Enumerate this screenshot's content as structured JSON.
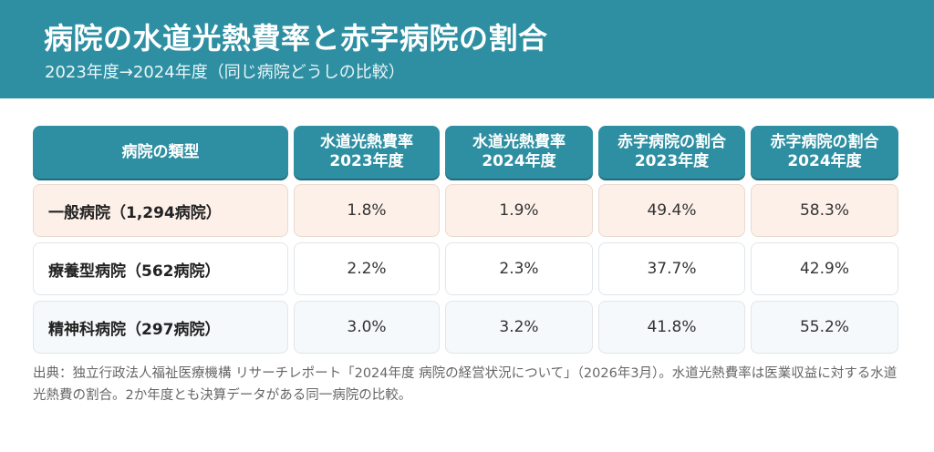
{
  "header": {
    "title": "病院の水道光熱費率と赤字病院の割合",
    "subtitle": "2023年度→2024年度（同じ病院どうしの比較）"
  },
  "table": {
    "columns": [
      "病院の類型",
      "水道光熱費率 2023年度",
      "水道光熱費率 2024年度",
      "赤字病院の割合 2023年度",
      "赤字病院の割合 2024年度"
    ],
    "rows": [
      [
        "一般病院（1,294病院）",
        "1.8%",
        "1.9%",
        "49.4%",
        "58.3%"
      ],
      [
        "療養型病院（562病院）",
        "2.2%",
        "2.3%",
        "37.7%",
        "42.9%"
      ],
      [
        "精神科病院（297病院）",
        "3.0%",
        "3.2%",
        "41.8%",
        "55.2%"
      ]
    ]
  },
  "footnote": "出典：独立行政法人福祉医療機構 リサーチレポート「2024年度 病院の経営状況について」（2026年3月）。水道光熱費率は医業収益に対する水道光熱費の割合。2か年度とも決算データがある同一病院の比較。",
  "colors": {
    "accent": "#2e8fa2",
    "highlight_row": "#fdf0e9",
    "alt_row": "#f5f9fb"
  }
}
